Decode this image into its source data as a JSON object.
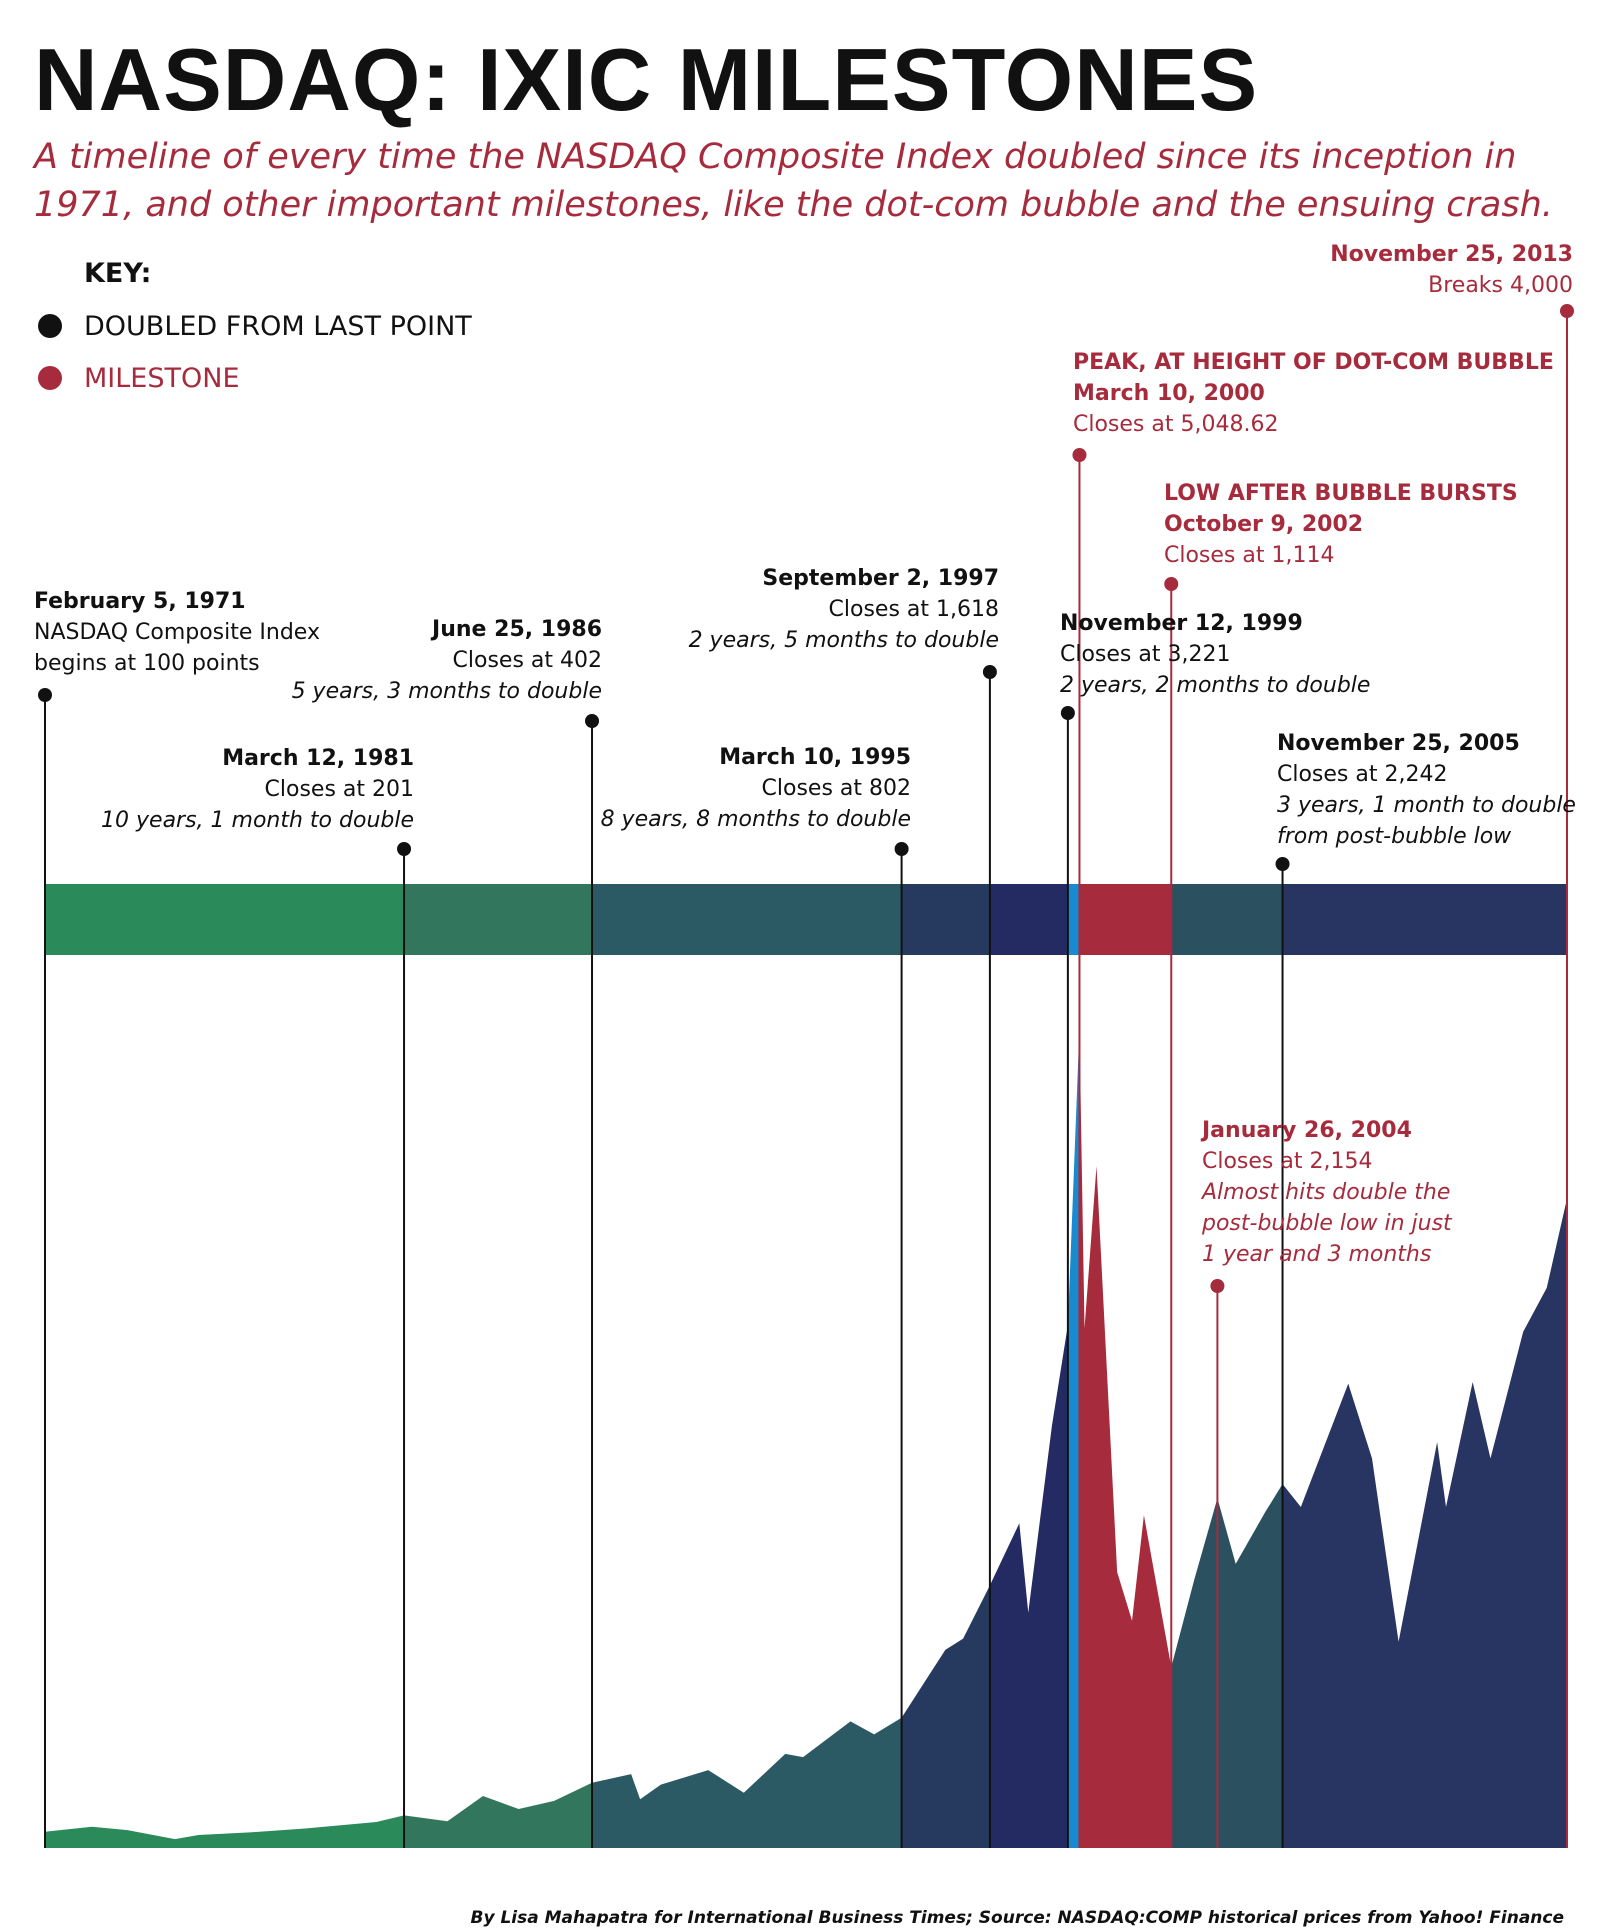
{
  "title": "NASDAQ: IXIC MILESTONES",
  "subtitle": "A timeline of every time the NASDAQ Composite Index doubled since its inception in 1971, and other important milestones, like the dot-com bubble and the ensuing crash.",
  "key": {
    "title": "KEY:",
    "items": [
      {
        "label": "DOUBLED FROM LAST POINT",
        "color": "#111111"
      },
      {
        "label": "MILESTONE",
        "color": "#a62b3c"
      }
    ]
  },
  "source": "By Lisa Mahapatra for International Business Times; Source: NASDAQ:COMP historical prices from Yahoo! Finance",
  "chart_data": {
    "type": "area",
    "title": "NASDAQ: IXIC MILESTONES",
    "xlabel": "",
    "ylabel": "",
    "x_range": [
      "1971-02-05",
      "2013-11-25"
    ],
    "ylim": [
      0,
      5100
    ],
    "grid": false,
    "legend": "top-left",
    "colors": {
      "milestone": "#a62b3c",
      "doubled": "#111111",
      "segments": [
        "#2a8a5a",
        "#33765e",
        "#2b5a64",
        "#253a5e",
        "#232b62",
        "#1a8ad0",
        "#a62b3c",
        "#2b5060",
        "#283461"
      ]
    },
    "milestones": [
      {
        "date": "1971-02-05",
        "type": "doubled",
        "heading": "February 5, 1971",
        "lines": [
          "NASDAQ Composite Index",
          "begins at 100 points"
        ],
        "italic": []
      },
      {
        "date": "1981-03-12",
        "type": "doubled",
        "heading": "March 12, 1981",
        "lines": [
          "Closes at 201"
        ],
        "italic": [
          "10 years, 1 month to double"
        ]
      },
      {
        "date": "1986-06-25",
        "type": "doubled",
        "heading": "June 25, 1986",
        "lines": [
          "Closes at 402"
        ],
        "italic": [
          "5 years, 3 months to double"
        ]
      },
      {
        "date": "1995-03-10",
        "type": "doubled",
        "heading": "March 10, 1995",
        "lines": [
          "Closes at 802"
        ],
        "italic": [
          "8 years, 8 months to double"
        ]
      },
      {
        "date": "1997-09-02",
        "type": "doubled",
        "heading": "September 2, 1997",
        "lines": [
          "Closes at 1,618"
        ],
        "italic": [
          "2 years, 5 months to double"
        ]
      },
      {
        "date": "1999-11-12",
        "type": "doubled",
        "heading": "November 12, 1999",
        "lines": [
          "Closes at 3,221"
        ],
        "italic": [
          "2 years, 2 months to double"
        ]
      },
      {
        "date": "2000-03-10",
        "type": "milestone",
        "heading": "PEAK,  AT HEIGHT OF DOT-COM BUBBLE",
        "heading2": "March 10, 2000",
        "lines": [
          "Closes at 5,048.62"
        ],
        "italic": []
      },
      {
        "date": "2002-10-09",
        "type": "milestone",
        "heading": "LOW AFTER BUBBLE BURSTS",
        "heading2": "October 9, 2002",
        "lines": [
          "Closes at 1,114"
        ],
        "italic": []
      },
      {
        "date": "2004-01-26",
        "type": "milestone",
        "heading": "January 26, 2004",
        "lines": [
          "Closes at 2,154"
        ],
        "italic": [
          "Almost hits double the",
          "post-bubble low in just",
          "1 year and 3 months"
        ]
      },
      {
        "date": "2005-11-25",
        "type": "doubled",
        "heading": "November 25, 2005",
        "lines": [
          "Closes at 2,242"
        ],
        "italic": [
          "3 years, 1 month to double",
          "from post-bubble low"
        ]
      },
      {
        "date": "2013-11-25",
        "type": "milestone",
        "heading": "November 25, 2013",
        "lines": [
          "Breaks 4,000"
        ],
        "italic": []
      }
    ],
    "series": [
      {
        "values": [
          [
            "1971-02-05",
            100
          ],
          [
            "1972-06-01",
            131
          ],
          [
            "1973-06-01",
            110
          ],
          [
            "1974-10-01",
            55
          ],
          [
            "1975-06-01",
            80
          ],
          [
            "1976-12-01",
            97
          ],
          [
            "1978-06-01",
            120
          ],
          [
            "1979-06-01",
            140
          ],
          [
            "1980-06-01",
            160
          ],
          [
            "1981-03-12",
            201
          ],
          [
            "1982-06-01",
            165
          ],
          [
            "1983-06-01",
            320
          ],
          [
            "1984-06-01",
            240
          ],
          [
            "1985-06-01",
            290
          ],
          [
            "1986-06-25",
            402
          ],
          [
            "1987-08-01",
            455
          ],
          [
            "1987-11-01",
            300
          ],
          [
            "1988-06-01",
            390
          ],
          [
            "1989-10-01",
            480
          ],
          [
            "1990-10-01",
            340
          ],
          [
            "1991-12-01",
            580
          ],
          [
            "1992-06-01",
            560
          ],
          [
            "1993-10-01",
            780
          ],
          [
            "1994-06-01",
            700
          ],
          [
            "1995-03-10",
            802
          ],
          [
            "1995-12-01",
            1050
          ],
          [
            "1996-06-01",
            1220
          ],
          [
            "1996-12-01",
            1290
          ],
          [
            "1997-09-02",
            1618
          ],
          [
            "1998-07-01",
            2000
          ],
          [
            "1998-10-01",
            1450
          ],
          [
            "1999-06-01",
            2600
          ],
          [
            "1999-11-12",
            3221
          ],
          [
            "2000-03-10",
            5048
          ],
          [
            "2000-05-01",
            3200
          ],
          [
            "2000-09-01",
            4200
          ],
          [
            "2001-04-01",
            1700
          ],
          [
            "2001-09-01",
            1400
          ],
          [
            "2002-01-01",
            2050
          ],
          [
            "2002-10-09",
            1114
          ],
          [
            "2003-06-01",
            1650
          ],
          [
            "2004-01-26",
            2154
          ],
          [
            "2004-08-01",
            1750
          ],
          [
            "2005-06-01",
            2070
          ],
          [
            "2005-11-25",
            2242
          ],
          [
            "2006-06-01",
            2100
          ],
          [
            "2007-10-01",
            2860
          ],
          [
            "2008-06-01",
            2400
          ],
          [
            "2009-03-01",
            1270
          ],
          [
            "2010-04-01",
            2500
          ],
          [
            "2010-07-01",
            2100
          ],
          [
            "2011-04-01",
            2870
          ],
          [
            "2011-10-01",
            2400
          ],
          [
            "2012-09-01",
            3180
          ],
          [
            "2013-05-01",
            3450
          ],
          [
            "2013-11-25",
            4000
          ]
        ]
      }
    ]
  }
}
